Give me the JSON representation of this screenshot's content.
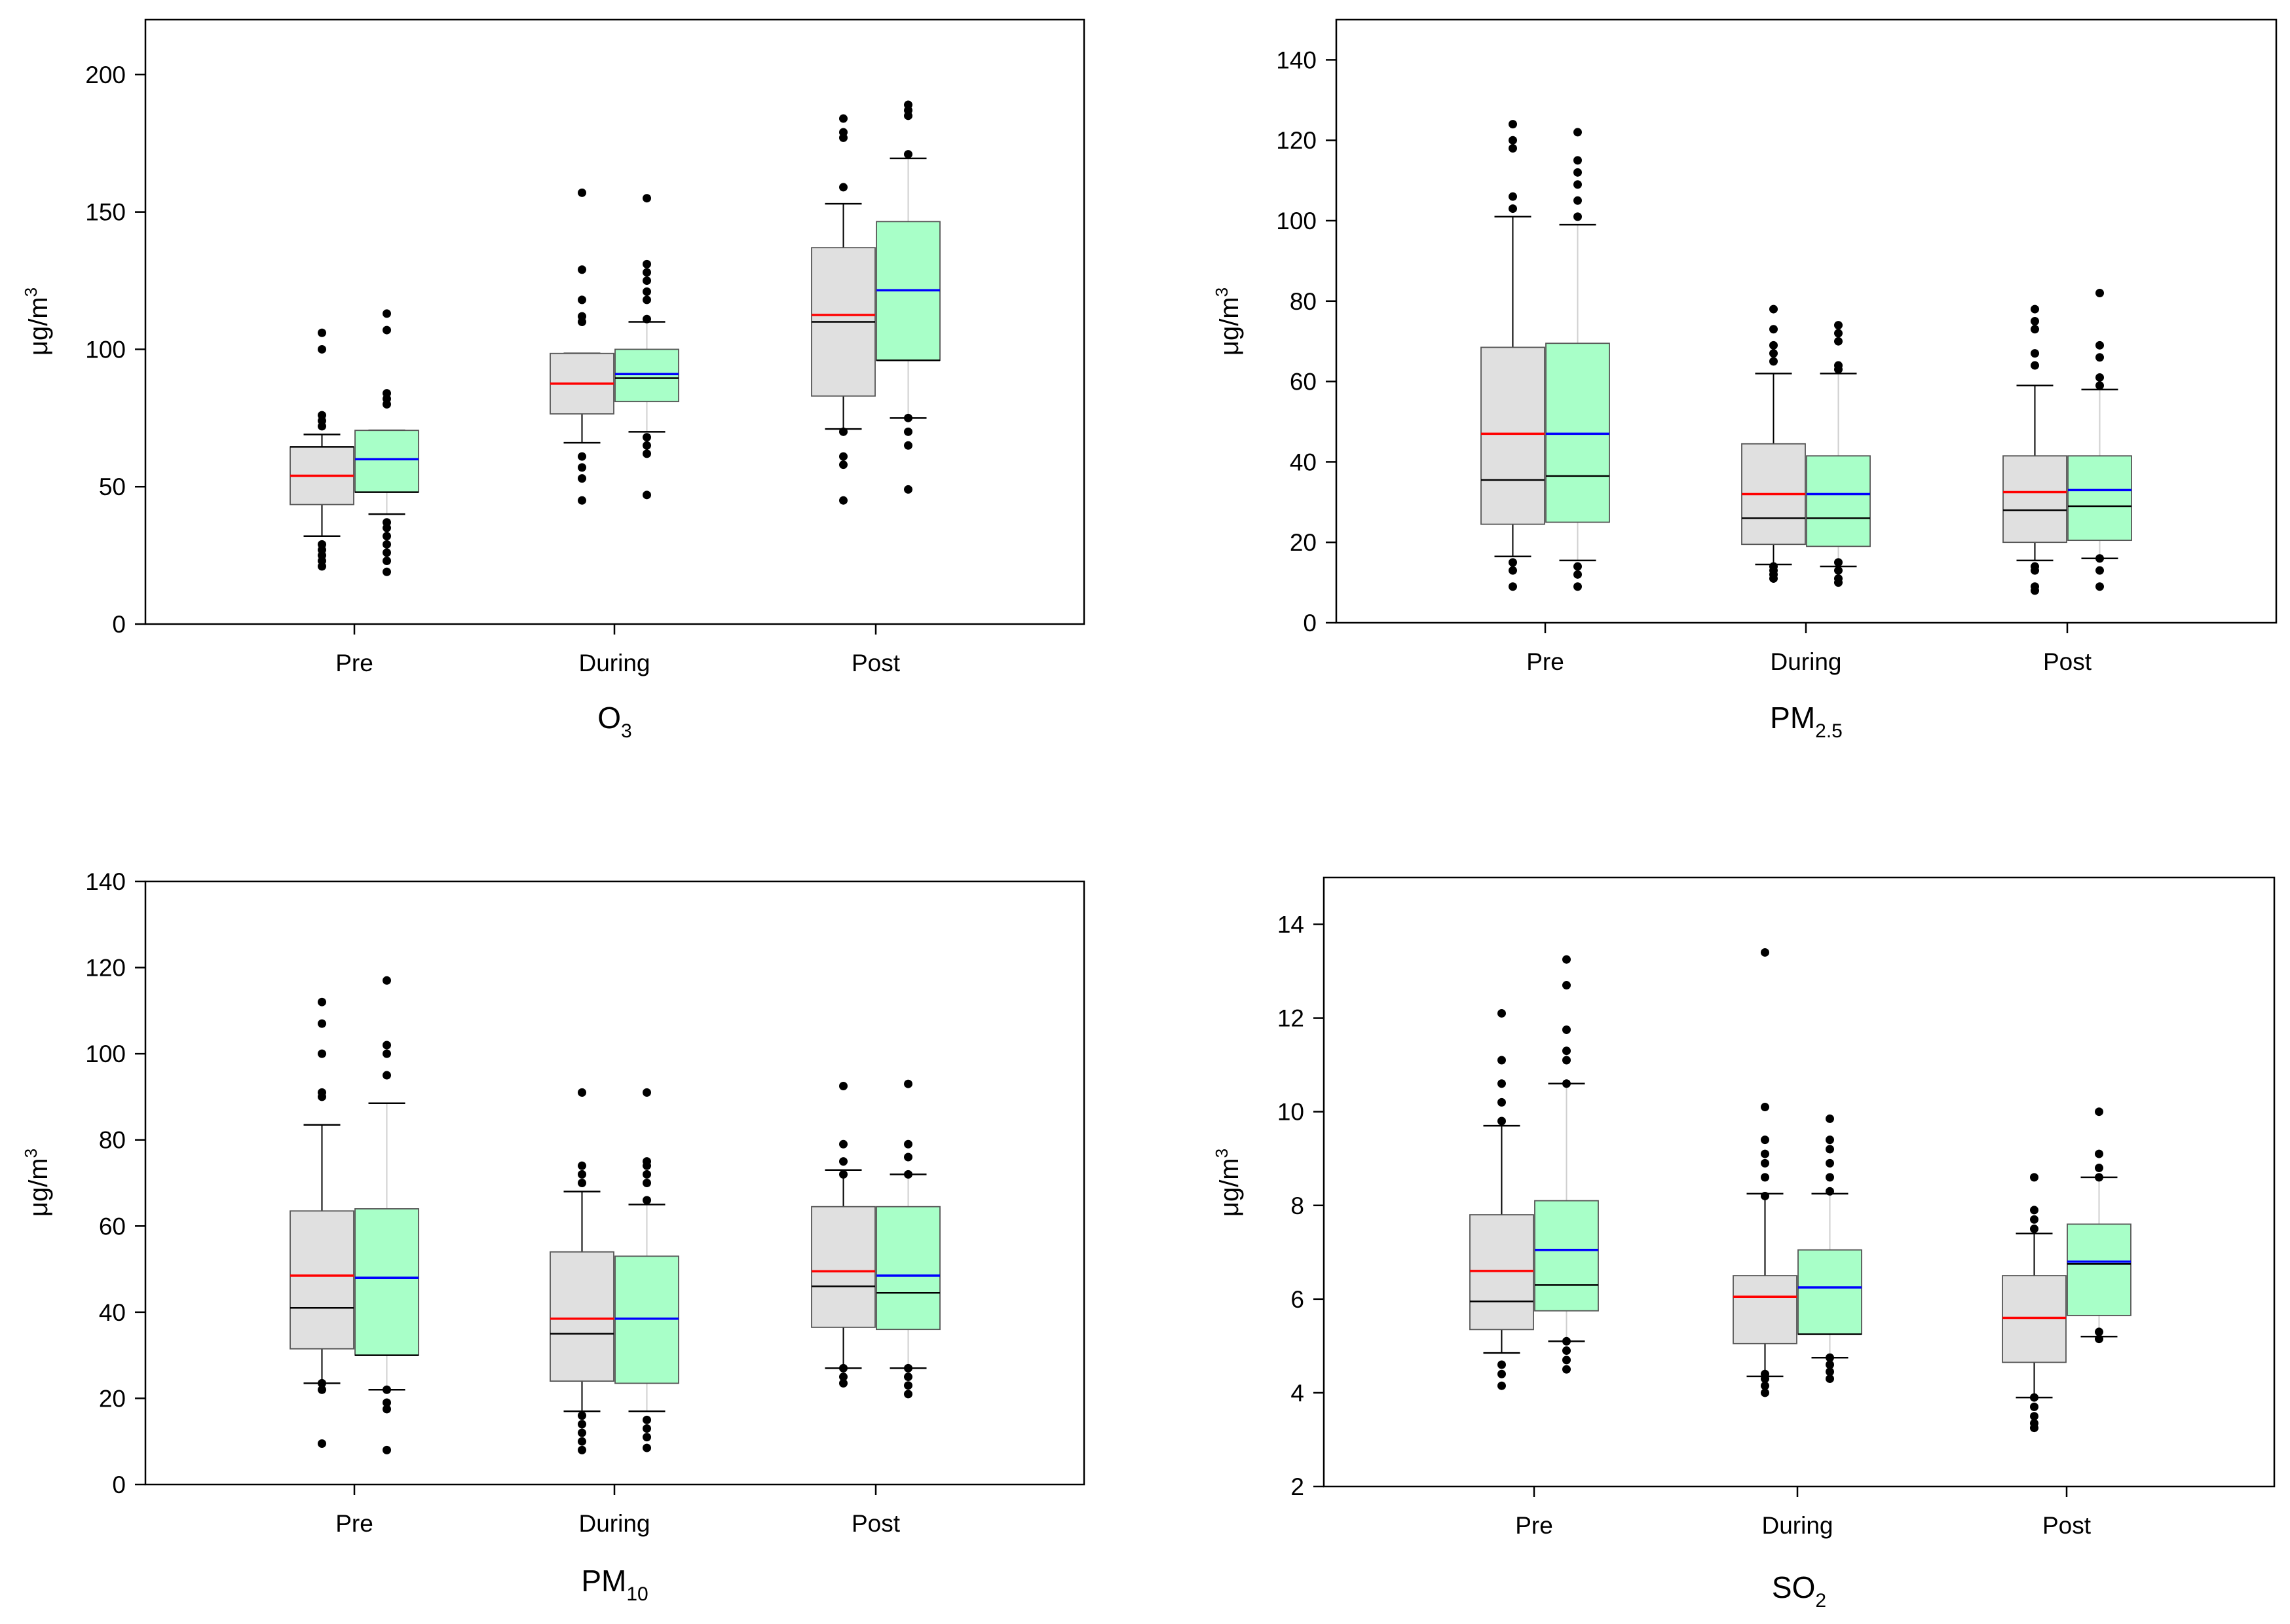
{
  "colors": {
    "box_group1": "#e0e0e0",
    "box_group2": "#a8ffc8",
    "mean_group1": "#ff0000",
    "mean_group2": "#0000ff",
    "median": "#000000",
    "whisker_group1": "#000000",
    "whisker_group2": "#cfcfcf",
    "outlier": "#000000"
  },
  "chart_data": [
    {
      "type": "box",
      "panel": "top-left",
      "title_base": "O",
      "title_sub": "3",
      "ylabel_base": "μg/m",
      "ylabel_sup": "3",
      "ylim": [
        0,
        220
      ],
      "yticks": [
        0,
        50,
        100,
        150,
        200
      ],
      "categories": [
        "Pre",
        "During",
        "Post"
      ],
      "boxes": [
        {
          "cat": 0,
          "grp": 0,
          "q1": 43.5,
          "q3": 64.5,
          "median": 64.5,
          "mean": 54,
          "wlo": 32,
          "whi": 69,
          "outliers": [
            21,
            23,
            25,
            27,
            29,
            72,
            74,
            76,
            100,
            106
          ]
        },
        {
          "cat": 0,
          "grp": 1,
          "q1": 48,
          "q3": 70.5,
          "median": 48,
          "mean": 60,
          "wlo": 40,
          "whi": 70.5,
          "outliers": [
            19,
            23,
            26,
            29,
            32,
            35,
            37,
            80,
            82,
            84,
            107,
            113
          ]
        },
        {
          "cat": 1,
          "grp": 0,
          "q1": 76.5,
          "q3": 98.5,
          "median": 87.5,
          "mean": 87.5,
          "wlo": 66,
          "whi": 98.5,
          "outliers": [
            45,
            53,
            57,
            61,
            110,
            112,
            118,
            129,
            157
          ]
        },
        {
          "cat": 1,
          "grp": 1,
          "q1": 81,
          "q3": 100,
          "median": 89.5,
          "mean": 91,
          "wlo": 70,
          "whi": 110,
          "outliers": [
            47,
            62,
            65,
            68,
            111,
            118,
            121,
            125,
            128,
            131,
            155
          ]
        },
        {
          "cat": 2,
          "grp": 0,
          "q1": 83,
          "q3": 137,
          "median": 110,
          "mean": 112.5,
          "wlo": 71,
          "whi": 153,
          "outliers": [
            45,
            58,
            61,
            70,
            159,
            177,
            179,
            184
          ]
        },
        {
          "cat": 2,
          "grp": 1,
          "q1": 96,
          "q3": 146.5,
          "median": 96,
          "mean": 121.5,
          "wlo": 75,
          "whi": 169.5,
          "outliers": [
            49,
            65,
            70,
            75,
            171,
            185,
            187,
            189
          ]
        }
      ]
    },
    {
      "type": "box",
      "panel": "top-right",
      "title_base": "PM",
      "title_sub": "2.5",
      "ylabel_base": "μg/m",
      "ylabel_sup": "3",
      "ylim": [
        0,
        150
      ],
      "yticks": [
        0,
        20,
        40,
        60,
        80,
        100,
        120,
        140
      ],
      "categories": [
        "Pre",
        "During",
        "Post"
      ],
      "boxes": [
        {
          "cat": 0,
          "grp": 0,
          "q1": 24.5,
          "q3": 68.5,
          "median": 35.5,
          "mean": 47,
          "wlo": 16.5,
          "whi": 101,
          "outliers": [
            9,
            13,
            15,
            103,
            106,
            118,
            120,
            124
          ]
        },
        {
          "cat": 0,
          "grp": 1,
          "q1": 25,
          "q3": 69.5,
          "median": 36.5,
          "mean": 47,
          "wlo": 15.5,
          "whi": 99,
          "outliers": [
            9,
            12,
            14,
            101,
            105,
            109,
            112,
            115,
            122
          ]
        },
        {
          "cat": 1,
          "grp": 0,
          "q1": 19.5,
          "q3": 44.5,
          "median": 26,
          "mean": 32,
          "wlo": 14.5,
          "whi": 62,
          "outliers": [
            11,
            12,
            13,
            14,
            65,
            67,
            69,
            73,
            78
          ]
        },
        {
          "cat": 1,
          "grp": 1,
          "q1": 19,
          "q3": 41.5,
          "median": 26,
          "mean": 32,
          "wlo": 14,
          "whi": 62,
          "outliers": [
            10,
            11,
            13,
            15,
            63,
            64,
            70,
            72,
            74
          ]
        },
        {
          "cat": 2,
          "grp": 0,
          "q1": 20,
          "q3": 41.5,
          "median": 28,
          "mean": 32.5,
          "wlo": 15.5,
          "whi": 59,
          "outliers": [
            8,
            9,
            13,
            14,
            64,
            67,
            73,
            75,
            78
          ]
        },
        {
          "cat": 2,
          "grp": 1,
          "q1": 20.5,
          "q3": 41.5,
          "median": 29,
          "mean": 33,
          "wlo": 16,
          "whi": 58,
          "outliers": [
            9,
            13,
            16,
            59,
            61,
            66,
            69,
            82
          ]
        }
      ]
    },
    {
      "type": "box",
      "panel": "bottom-left",
      "title_base": "PM",
      "title_sub": "10",
      "ylabel_base": "μg/m",
      "ylabel_sup": "3",
      "ylim": [
        0,
        140
      ],
      "yticks": [
        0,
        20,
        40,
        60,
        80,
        100,
        120,
        140
      ],
      "categories": [
        "Pre",
        "During",
        "Post"
      ],
      "boxes": [
        {
          "cat": 0,
          "grp": 0,
          "q1": 31.5,
          "q3": 63.5,
          "median": 41,
          "mean": 48.5,
          "wlo": 23.5,
          "whi": 83.5,
          "outliers": [
            9.5,
            22,
            23.5,
            90,
            91,
            100,
            107,
            112
          ]
        },
        {
          "cat": 0,
          "grp": 1,
          "q1": 30,
          "q3": 64,
          "median": 30,
          "mean": 48,
          "wlo": 22,
          "whi": 88.5,
          "outliers": [
            8,
            17.5,
            19,
            22,
            95,
            100,
            102,
            117
          ]
        },
        {
          "cat": 1,
          "grp": 0,
          "q1": 24,
          "q3": 54,
          "median": 35,
          "mean": 38.5,
          "wlo": 17,
          "whi": 68,
          "outliers": [
            8,
            10,
            12,
            14,
            16,
            70,
            72,
            74,
            91
          ]
        },
        {
          "cat": 1,
          "grp": 1,
          "q1": 23.5,
          "q3": 53,
          "median": 38.5,
          "mean": 38.5,
          "wlo": 17,
          "whi": 65,
          "outliers": [
            8.5,
            11,
            13,
            15,
            66,
            70,
            72,
            74,
            75,
            91
          ]
        },
        {
          "cat": 2,
          "grp": 0,
          "q1": 36.5,
          "q3": 64.5,
          "median": 46,
          "mean": 49.5,
          "wlo": 27,
          "whi": 73,
          "outliers": [
            23.5,
            25,
            27,
            72,
            75,
            79,
            92.5
          ]
        },
        {
          "cat": 2,
          "grp": 1,
          "q1": 36,
          "q3": 64.5,
          "median": 44.5,
          "mean": 48.5,
          "wlo": 27,
          "whi": 72,
          "outliers": [
            21,
            23,
            25,
            27,
            72,
            76,
            79,
            93
          ]
        }
      ]
    },
    {
      "type": "box",
      "panel": "bottom-right",
      "title_base": "SO",
      "title_sub": "2",
      "ylabel_base": "μg/m",
      "ylabel_sup": "3",
      "ylim": [
        2,
        15
      ],
      "yticks": [
        2,
        4,
        6,
        8,
        10,
        12,
        14
      ],
      "categories": [
        "Pre",
        "During",
        "Post"
      ],
      "boxes": [
        {
          "cat": 0,
          "grp": 0,
          "q1": 5.35,
          "q3": 7.8,
          "median": 5.95,
          "mean": 6.6,
          "wlo": 4.85,
          "whi": 9.7,
          "outliers": [
            4.15,
            4.4,
            4.6,
            9.8,
            10.2,
            10.6,
            11.1,
            12.1
          ]
        },
        {
          "cat": 0,
          "grp": 1,
          "q1": 5.75,
          "q3": 8.1,
          "median": 6.3,
          "mean": 7.05,
          "wlo": 5.1,
          "whi": 10.6,
          "outliers": [
            4.5,
            4.7,
            4.9,
            5.1,
            10.6,
            11.1,
            11.3,
            11.75,
            12.7,
            13.25
          ]
        },
        {
          "cat": 1,
          "grp": 0,
          "q1": 5.05,
          "q3": 6.5,
          "median": 6.05,
          "mean": 6.05,
          "wlo": 4.35,
          "whi": 8.25,
          "outliers": [
            4.0,
            4.15,
            4.3,
            4.4,
            8.2,
            8.6,
            8.9,
            9.1,
            9.4,
            10.1,
            13.4
          ]
        },
        {
          "cat": 1,
          "grp": 1,
          "q1": 5.25,
          "q3": 7.05,
          "median": 5.25,
          "mean": 6.25,
          "wlo": 4.75,
          "whi": 8.25,
          "outliers": [
            4.3,
            4.45,
            4.6,
            4.75,
            8.3,
            8.6,
            8.9,
            9.2,
            9.4,
            9.85
          ]
        },
        {
          "cat": 2,
          "grp": 0,
          "q1": 4.65,
          "q3": 6.5,
          "median": 5.6,
          "mean": 5.6,
          "wlo": 3.9,
          "whi": 7.4,
          "outliers": [
            3.25,
            3.35,
            3.5,
            3.7,
            3.9,
            7.5,
            7.7,
            7.9,
            8.6
          ]
        },
        {
          "cat": 2,
          "grp": 1,
          "q1": 5.65,
          "q3": 7.6,
          "median": 6.75,
          "mean": 6.8,
          "wlo": 5.2,
          "whi": 8.6,
          "outliers": [
            5.15,
            5.3,
            8.6,
            8.8,
            9.1,
            10.0
          ]
        }
      ]
    }
  ]
}
